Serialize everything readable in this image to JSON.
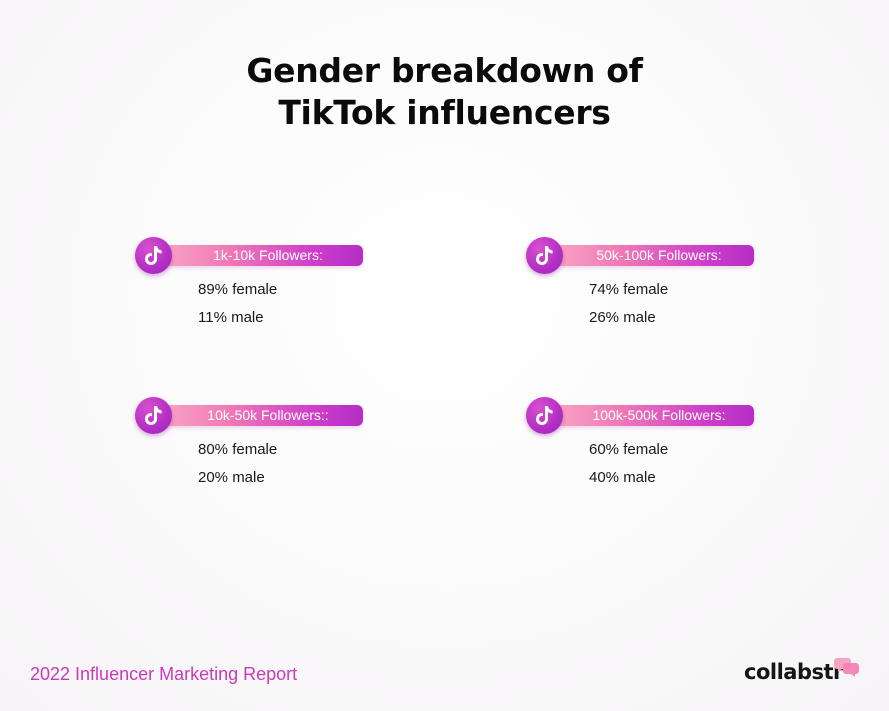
{
  "title": {
    "line1": "Gender breakdown of",
    "line2": "TikTok influencers"
  },
  "cards": [
    {
      "label": "1k-10k Followers:",
      "female": "89% female",
      "male": "11% male",
      "icon": "tiktok-icon"
    },
    {
      "label": "50k-100k Followers:",
      "female": "74% female",
      "male": "26% male",
      "icon": "tiktok-icon"
    },
    {
      "label": "10k-50k Followers::",
      "female": "80% female",
      "male": "20% male",
      "icon": "tiktok-icon"
    },
    {
      "label": "100k-500k Followers:",
      "female": "60% female",
      "male": "40% male",
      "icon": "tiktok-icon"
    }
  ],
  "footer": {
    "report": "2022 Influencer Marketing Report",
    "brand": "collabstr",
    "brand_icon": "chat-bubbles-icon"
  },
  "colors": {
    "accent_pink": "#f07ab6",
    "accent_purple": "#b52ec7",
    "footer_text": "#c93bb8"
  }
}
